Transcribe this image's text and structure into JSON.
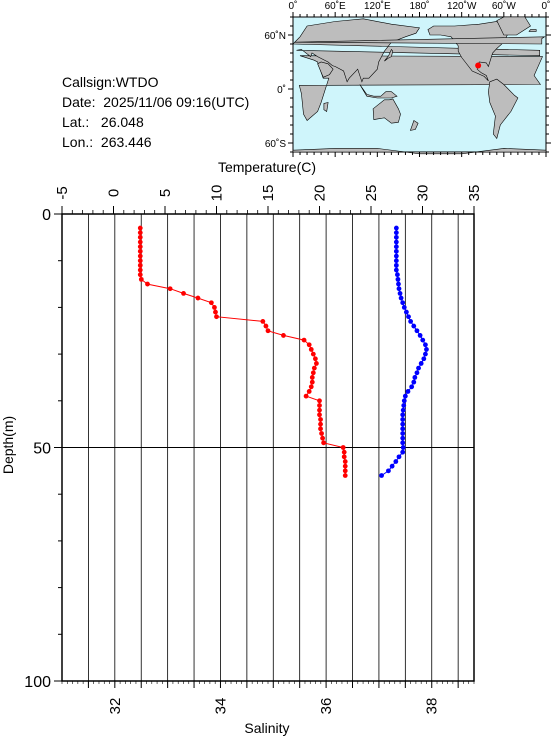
{
  "station": {
    "callsign_line": "Callsign:WTDO",
    "date_label": "Date:",
    "date_value": "2025/11/06 09:16(UTC)",
    "lat_label": "Lat.:",
    "lat_value": "26.048",
    "lon_label": "Lon.:",
    "lon_value": "263.446"
  },
  "map": {
    "top_labels": [
      "0˚",
      "60˚E",
      "120˚E",
      "180˚",
      "120˚W",
      "60˚W",
      "0˚"
    ],
    "left_labels": [
      "60˚N",
      "0˚",
      "60˚S"
    ],
    "ocean_color": "#cff5fb",
    "land_color": "#bdbdbd",
    "marker_color": "#ff0000",
    "marker": {
      "lon": 263.446,
      "lat": 26.048
    }
  },
  "chart_data": {
    "type": "line",
    "ylabel": "Depth(m)",
    "x_top_label": "Temperature(C)",
    "x_bottom_label": "Salinity",
    "ylim": [
      0,
      100
    ],
    "y_inverted": true,
    "y_ticks": [
      "0",
      "50",
      "100"
    ],
    "temperature_axis": {
      "xlim": [
        -5,
        35
      ],
      "ticks": [
        "-5",
        "0",
        "5",
        "10",
        "15",
        "20",
        "25",
        "30",
        "35"
      ]
    },
    "salinity_axis": {
      "xlim": [
        31.0,
        38.8
      ],
      "ticks": [
        "32",
        "34",
        "36",
        "38"
      ]
    },
    "grid": true,
    "series": [
      {
        "name": "Temperature",
        "axis": "temperature",
        "color": "#ff0000",
        "points": [
          [
            2.6,
            3
          ],
          [
            2.6,
            4
          ],
          [
            2.6,
            5
          ],
          [
            2.6,
            6
          ],
          [
            2.6,
            7
          ],
          [
            2.6,
            8
          ],
          [
            2.6,
            9
          ],
          [
            2.6,
            10
          ],
          [
            2.6,
            11
          ],
          [
            2.6,
            12
          ],
          [
            2.6,
            13
          ],
          [
            2.7,
            14
          ],
          [
            3.3,
            15
          ],
          [
            5.5,
            16
          ],
          [
            6.8,
            17
          ],
          [
            8.2,
            18
          ],
          [
            9.5,
            19
          ],
          [
            9.8,
            20
          ],
          [
            9.9,
            21
          ],
          [
            10.0,
            22
          ],
          [
            14.5,
            23
          ],
          [
            14.8,
            24
          ],
          [
            15.0,
            25
          ],
          [
            16.5,
            26
          ],
          [
            18.5,
            27
          ],
          [
            19.0,
            28
          ],
          [
            19.2,
            29
          ],
          [
            19.4,
            30
          ],
          [
            19.6,
            31
          ],
          [
            19.7,
            32
          ],
          [
            19.5,
            33
          ],
          [
            19.4,
            34
          ],
          [
            19.3,
            35
          ],
          [
            19.3,
            36
          ],
          [
            19.2,
            37
          ],
          [
            19.0,
            38
          ],
          [
            18.7,
            39
          ],
          [
            20.0,
            40
          ],
          [
            20.0,
            41
          ],
          [
            20.0,
            42
          ],
          [
            20.0,
            43
          ],
          [
            20.1,
            44
          ],
          [
            20.1,
            45
          ],
          [
            20.1,
            46
          ],
          [
            20.2,
            47
          ],
          [
            20.3,
            48
          ],
          [
            20.4,
            49
          ],
          [
            22.3,
            50
          ],
          [
            22.4,
            51
          ],
          [
            22.4,
            52
          ],
          [
            22.5,
            53
          ],
          [
            22.5,
            54
          ],
          [
            22.5,
            55
          ],
          [
            22.5,
            56
          ]
        ]
      },
      {
        "name": "Salinity",
        "axis": "salinity",
        "color": "#0000ff",
        "points": [
          [
            37.33,
            3
          ],
          [
            37.33,
            4
          ],
          [
            37.33,
            5
          ],
          [
            37.33,
            6
          ],
          [
            37.33,
            7
          ],
          [
            37.33,
            8
          ],
          [
            37.33,
            9
          ],
          [
            37.33,
            10
          ],
          [
            37.33,
            11
          ],
          [
            37.33,
            12
          ],
          [
            37.35,
            13
          ],
          [
            37.36,
            14
          ],
          [
            37.37,
            15
          ],
          [
            37.38,
            16
          ],
          [
            37.4,
            17
          ],
          [
            37.42,
            18
          ],
          [
            37.45,
            19
          ],
          [
            37.48,
            20
          ],
          [
            37.52,
            21
          ],
          [
            37.56,
            22
          ],
          [
            37.6,
            23
          ],
          [
            37.66,
            24
          ],
          [
            37.72,
            25
          ],
          [
            37.78,
            26
          ],
          [
            37.83,
            27
          ],
          [
            37.88,
            28
          ],
          [
            37.9,
            29
          ],
          [
            37.88,
            30
          ],
          [
            37.85,
            31
          ],
          [
            37.8,
            32
          ],
          [
            37.75,
            33
          ],
          [
            37.72,
            34
          ],
          [
            37.68,
            35
          ],
          [
            37.66,
            36
          ],
          [
            37.62,
            37
          ],
          [
            37.55,
            38
          ],
          [
            37.5,
            39
          ],
          [
            37.48,
            40
          ],
          [
            37.47,
            41
          ],
          [
            37.46,
            42
          ],
          [
            37.45,
            43
          ],
          [
            37.45,
            44
          ],
          [
            37.45,
            45
          ],
          [
            37.45,
            46
          ],
          [
            37.45,
            47
          ],
          [
            37.45,
            48
          ],
          [
            37.45,
            49
          ],
          [
            37.46,
            50
          ],
          [
            37.45,
            51
          ],
          [
            37.38,
            52
          ],
          [
            37.32,
            53
          ],
          [
            37.25,
            54
          ],
          [
            37.18,
            55
          ],
          [
            37.05,
            56
          ]
        ]
      }
    ]
  }
}
